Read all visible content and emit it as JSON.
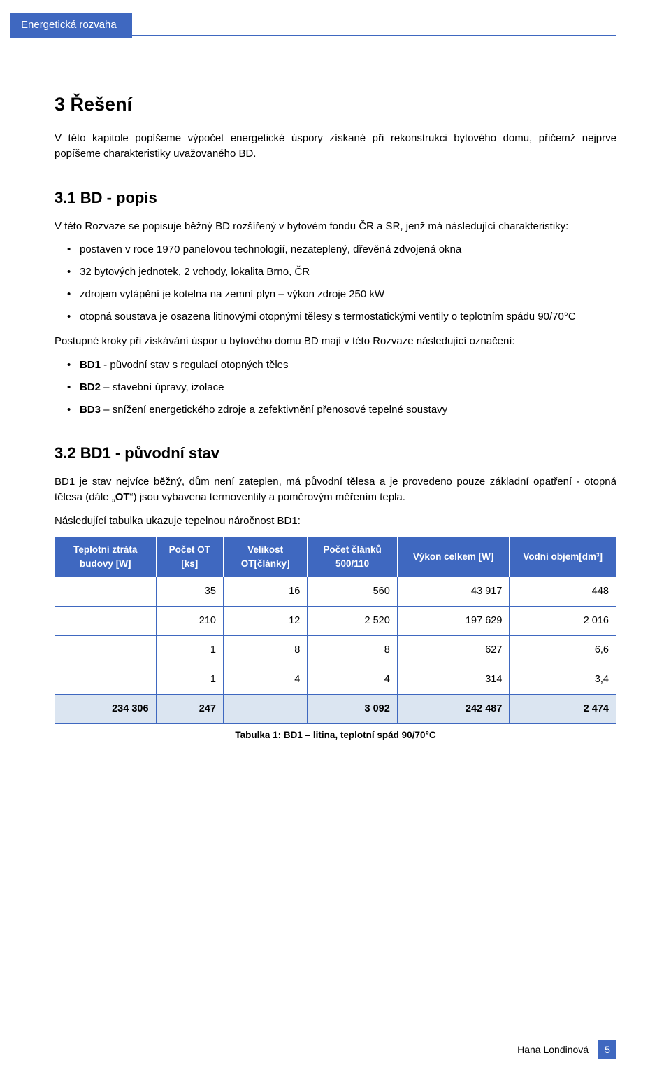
{
  "header": {
    "tab": "Energetická rozvaha"
  },
  "section3": {
    "heading": "3  Řešení",
    "intro": "V této kapitole popíšeme výpočet energetické úspory získané při rekonstrukci bytového domu, přičemž nejprve popíšeme charakteristiky uvažovaného BD."
  },
  "section31": {
    "heading": "3.1  BD - popis",
    "intro": "V této Rozvaze se popisuje běžný BD rozšířený v bytovém fondu ČR a SR, jenž má následující charakteristiky:",
    "bullets": [
      "postaven v roce 1970 panelovou technologií, nezateplený, dřevěná zdvojená okna",
      "32 bytových jednotek, 2 vchody, lokalita Brno, ČR",
      "zdrojem vytápění je kotelna na zemní plyn – výkon zdroje 250 kW",
      "otopná soustava je osazena  litinovými  otopnými tělesy s termostatickými ventily o teplotním spádu  90/70°C"
    ],
    "steps_intro": "Postupné kroky při získávání úspor u bytového domu BD mají v této Rozvaze následující označení:",
    "steps": [
      {
        "b": "BD1",
        "t": " - původní stav s regulací otopných těles"
      },
      {
        "b": "BD2",
        "t": " – stavební úpravy, izolace"
      },
      {
        "b": "BD3",
        "t": " – snížení energetického zdroje a zefektivnění přenosové tepelné soustavy"
      }
    ]
  },
  "section32": {
    "heading": "3.2  BD1 - původní stav",
    "p1_a": "BD1 je stav nejvíce běžný, dům není zateplen, má původní tělesa a je provedeno pouze základní opatření - otopná tělesa (dále „",
    "p1_b": "OT",
    "p1_c": "“) jsou vybavena termoventily a poměrovým měřením tepla.",
    "p2": "Následující tabulka ukazuje tepelnou náročnost BD1:"
  },
  "table": {
    "columns": [
      "Teplotní ztráta budovy [W]",
      "Počet OT [ks]",
      "Velikost OT[články]",
      "Počet článků 500/110",
      "Výkon celkem [W]",
      "Vodní objem[dm³]"
    ],
    "col_widths": [
      "18%",
      "12%",
      "15%",
      "16%",
      "20%",
      "19%"
    ],
    "rows": [
      [
        "",
        "35",
        "16",
        "560",
        "43 917",
        "448"
      ],
      [
        "",
        "210",
        "12",
        "2 520",
        "197 629",
        "2 016"
      ],
      [
        "",
        "1",
        "8",
        "8",
        "627",
        "6,6"
      ],
      [
        "",
        "1",
        "4",
        "4",
        "314",
        "3,4"
      ]
    ],
    "total": [
      "234 306",
      "247",
      "",
      "3 092",
      "242 487",
      "2 474"
    ],
    "caption": "Tabulka 1: BD1 – litina, teplotní spád  90/70°C",
    "header_bg": "#3f68c0",
    "header_fg": "#ffffff",
    "total_bg": "#dbe5f1",
    "border_color": "#3f68c0"
  },
  "footer": {
    "author": "Hana Londinová",
    "page": "5"
  }
}
